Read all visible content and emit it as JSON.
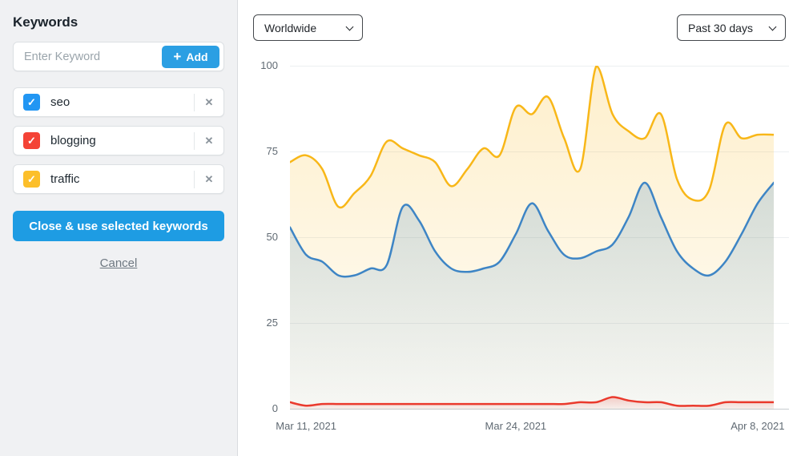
{
  "sidebar": {
    "title": "Keywords",
    "input": {
      "placeholder": "Enter Keyword",
      "add_label": "Add"
    },
    "keywords": [
      {
        "label": "seo",
        "checked": true,
        "color": "#2196F3"
      },
      {
        "label": "blogging",
        "checked": true,
        "color": "#F44336"
      },
      {
        "label": "traffic",
        "checked": true,
        "color": "#FCBF2A"
      }
    ],
    "apply_label": "Close & use selected keywords",
    "cancel_label": "Cancel"
  },
  "toolbar": {
    "region_select": "Worldwide",
    "range_select": "Past 30 days"
  },
  "icons": {
    "add": "+",
    "check": "✓",
    "remove": "✕"
  },
  "chart_data": {
    "type": "area",
    "title": "",
    "xlabel": "",
    "ylabel": "",
    "ylim": [
      0,
      100
    ],
    "y_ticks": [
      0,
      25,
      50,
      75,
      100
    ],
    "grid": true,
    "legend": "none",
    "x_dates": [
      "Mar 10, 2021",
      "Mar 11, 2021",
      "Mar 12, 2021",
      "Mar 13, 2021",
      "Mar 14, 2021",
      "Mar 15, 2021",
      "Mar 16, 2021",
      "Mar 17, 2021",
      "Mar 18, 2021",
      "Mar 19, 2021",
      "Mar 20, 2021",
      "Mar 21, 2021",
      "Mar 22, 2021",
      "Mar 23, 2021",
      "Mar 24, 2021",
      "Mar 25, 2021",
      "Mar 26, 2021",
      "Mar 27, 2021",
      "Mar 28, 2021",
      "Mar 29, 2021",
      "Mar 30, 2021",
      "Mar 31, 2021",
      "Apr 1, 2021",
      "Apr 2, 2021",
      "Apr 3, 2021",
      "Apr 4, 2021",
      "Apr 5, 2021",
      "Apr 6, 2021",
      "Apr 7, 2021",
      "Apr 8, 2021",
      "Apr 9, 2021"
    ],
    "x_ticks": [
      {
        "index": 1,
        "label": "Mar 11, 2021"
      },
      {
        "index": 14,
        "label": "Mar 24, 2021"
      },
      {
        "index": 29,
        "label": "Apr 8, 2021"
      }
    ],
    "series": [
      {
        "name": "traffic",
        "color": "#F8B718",
        "values": [
          72,
          74,
          70,
          59,
          63,
          68,
          78,
          76,
          74,
          72,
          65,
          70,
          76,
          74,
          88,
          86,
          91,
          79,
          70,
          100,
          86,
          81,
          79,
          86,
          67,
          61,
          64,
          83,
          79,
          80,
          80
        ]
      },
      {
        "name": "seo",
        "color": "#3E85C5",
        "values": [
          53,
          45,
          43,
          39,
          39,
          41,
          42,
          59,
          55,
          46,
          41,
          40,
          41,
          43,
          51,
          60,
          52,
          45,
          44,
          46,
          48,
          56,
          66,
          56,
          46,
          41,
          39,
          43,
          51,
          60,
          66
        ]
      },
      {
        "name": "blogging",
        "color": "#EA3A2D",
        "values": [
          2,
          1,
          1.5,
          1.5,
          1.5,
          1.5,
          1.5,
          1.5,
          1.5,
          1.5,
          1.5,
          1.5,
          1.5,
          1.5,
          1.5,
          1.5,
          1.5,
          1.5,
          2,
          2,
          3.5,
          2.5,
          2,
          2,
          1,
          1,
          1,
          2,
          2,
          2,
          2
        ]
      }
    ]
  }
}
